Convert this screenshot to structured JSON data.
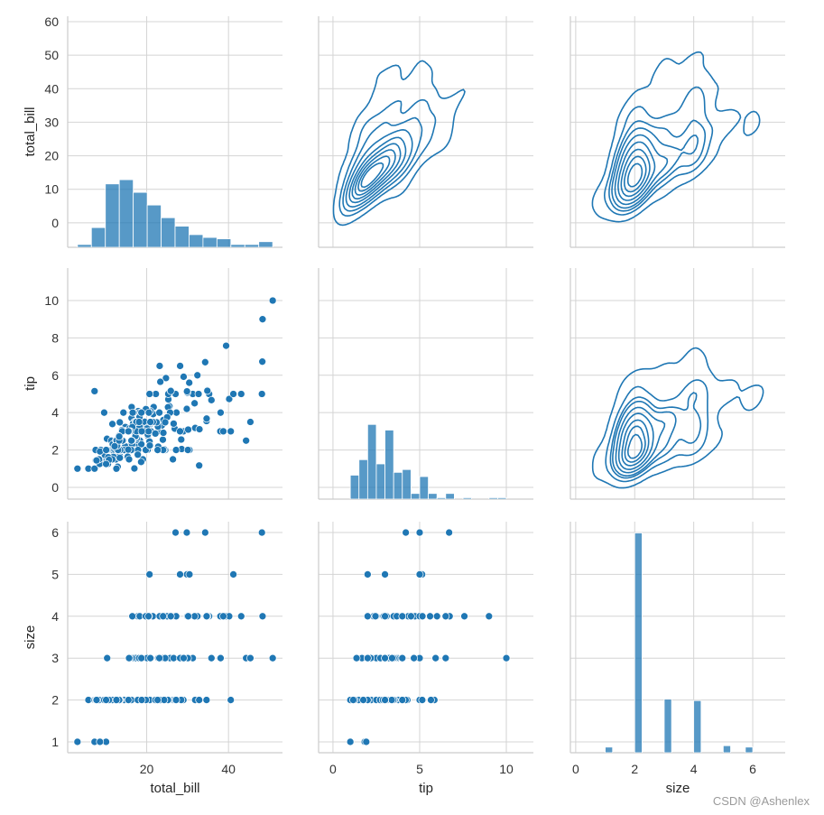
{
  "chart_data": {
    "type": "scatter",
    "kind": "pairplot",
    "lower": "scatter",
    "upper": "kde",
    "diag": "hist",
    "color": "#1f77b4",
    "grid": true,
    "variables": [
      "total_bill",
      "tip",
      "size"
    ],
    "column_axes": [
      {
        "label": "total_bill",
        "xlim": [
          0.68,
          53.2
        ],
        "xticks": [
          "20",
          "40"
        ]
      },
      {
        "label": "tip",
        "xlim": [
          -0.83,
          11.56
        ],
        "xticks": [
          "0",
          "5",
          "10"
        ]
      },
      {
        "label": "size",
        "xlim": [
          -0.18,
          7.1
        ],
        "xticks": [
          "0",
          "2",
          "4",
          "6"
        ]
      }
    ],
    "row_axes": [
      {
        "label": "total_bill",
        "ylim": [
          -7.3,
          61.6
        ],
        "yticks": [
          "0",
          "10",
          "20",
          "30",
          "40",
          "50",
          "60"
        ]
      },
      {
        "label": "tip",
        "ylim": [
          -0.63,
          11.74
        ],
        "yticks": [
          "0",
          "2",
          "4",
          "6",
          "8",
          "10"
        ]
      },
      {
        "label": "size",
        "ylim": [
          0.74,
          6.26
        ],
        "yticks": [
          "1",
          "2",
          "3",
          "4",
          "5",
          "6"
        ]
      }
    ],
    "diag_hist": [
      {
        "variable": "total_bill",
        "bins": 14,
        "range": [
          3.07,
          50.81
        ]
      },
      {
        "variable": "tip",
        "bins": 18,
        "range": [
          1,
          10
        ]
      },
      {
        "variable": "size",
        "bins": 20,
        "range": [
          1,
          6
        ]
      }
    ],
    "diag_count_ylim": [
      0,
      164
    ],
    "kde_levels": 10,
    "kde_thresh": 0.05,
    "columns": [
      "total_bill",
      "tip",
      "size"
    ],
    "points": [
      [
        16.99,
        1.01,
        2
      ],
      [
        10.34,
        1.66,
        3
      ],
      [
        21.01,
        3.5,
        3
      ],
      [
        23.68,
        3.31,
        2
      ],
      [
        24.59,
        3.61,
        4
      ],
      [
        25.29,
        4.71,
        4
      ],
      [
        8.77,
        2.0,
        2
      ],
      [
        26.88,
        3.12,
        4
      ],
      [
        15.04,
        1.96,
        2
      ],
      [
        14.78,
        3.23,
        2
      ],
      [
        10.27,
        1.71,
        2
      ],
      [
        35.26,
        5.0,
        4
      ],
      [
        15.42,
        1.57,
        2
      ],
      [
        18.43,
        3.0,
        4
      ],
      [
        14.83,
        3.02,
        2
      ],
      [
        21.58,
        3.92,
        2
      ],
      [
        10.33,
        1.67,
        3
      ],
      [
        16.29,
        3.71,
        3
      ],
      [
        16.97,
        3.5,
        3
      ],
      [
        20.65,
        3.35,
        3
      ],
      [
        17.92,
        4.08,
        2
      ],
      [
        20.29,
        2.75,
        2
      ],
      [
        15.77,
        2.23,
        2
      ],
      [
        39.42,
        7.58,
        4
      ],
      [
        19.82,
        3.18,
        2
      ],
      [
        17.81,
        2.34,
        4
      ],
      [
        13.37,
        2.0,
        2
      ],
      [
        12.69,
        2.0,
        2
      ],
      [
        21.7,
        4.3,
        2
      ],
      [
        19.65,
        3.0,
        2
      ],
      [
        9.55,
        1.45,
        2
      ],
      [
        18.35,
        2.5,
        4
      ],
      [
        15.06,
        3.0,
        2
      ],
      [
        20.69,
        2.45,
        4
      ],
      [
        17.78,
        3.27,
        2
      ],
      [
        24.06,
        3.6,
        3
      ],
      [
        16.31,
        2.0,
        3
      ],
      [
        16.93,
        3.07,
        3
      ],
      [
        18.69,
        2.31,
        3
      ],
      [
        31.27,
        5.0,
        3
      ],
      [
        16.04,
        2.24,
        3
      ],
      [
        17.46,
        2.54,
        2
      ],
      [
        13.94,
        3.06,
        2
      ],
      [
        9.68,
        1.32,
        2
      ],
      [
        30.4,
        5.6,
        4
      ],
      [
        18.29,
        3.0,
        2
      ],
      [
        22.23,
        5.0,
        2
      ],
      [
        32.4,
        6.0,
        4
      ],
      [
        28.55,
        2.05,
        3
      ],
      [
        18.04,
        3.0,
        2
      ],
      [
        12.54,
        2.5,
        2
      ],
      [
        10.29,
        2.6,
        2
      ],
      [
        34.81,
        5.2,
        4
      ],
      [
        9.94,
        1.56,
        2
      ],
      [
        25.56,
        4.34,
        4
      ],
      [
        19.49,
        3.51,
        2
      ],
      [
        38.01,
        3.0,
        4
      ],
      [
        26.41,
        1.5,
        2
      ],
      [
        11.24,
        1.76,
        2
      ],
      [
        48.27,
        6.73,
        4
      ],
      [
        20.29,
        3.21,
        2
      ],
      [
        13.81,
        2.0,
        2
      ],
      [
        11.02,
        1.98,
        2
      ],
      [
        18.29,
        3.76,
        4
      ],
      [
        17.59,
        2.64,
        3
      ],
      [
        20.08,
        3.15,
        3
      ],
      [
        16.45,
        2.47,
        2
      ],
      [
        3.07,
        1.0,
        1
      ],
      [
        20.23,
        2.01,
        2
      ],
      [
        15.01,
        2.09,
        2
      ],
      [
        12.02,
        1.97,
        2
      ],
      [
        17.07,
        3.0,
        3
      ],
      [
        26.86,
        3.14,
        2
      ],
      [
        25.28,
        5.0,
        2
      ],
      [
        14.73,
        2.2,
        2
      ],
      [
        10.51,
        1.25,
        2
      ],
      [
        17.92,
        3.08,
        2
      ],
      [
        27.2,
        4.0,
        4
      ],
      [
        22.76,
        3.0,
        2
      ],
      [
        17.29,
        2.71,
        2
      ],
      [
        19.44,
        3.0,
        2
      ],
      [
        16.66,
        3.4,
        2
      ],
      [
        10.07,
        1.83,
        1
      ],
      [
        32.68,
        5.0,
        2
      ],
      [
        15.98,
        2.03,
        2
      ],
      [
        34.83,
        5.17,
        4
      ],
      [
        13.03,
        2.0,
        2
      ],
      [
        18.28,
        4.0,
        2
      ],
      [
        24.71,
        5.85,
        2
      ],
      [
        21.16,
        3.0,
        2
      ],
      [
        28.97,
        3.0,
        2
      ],
      [
        22.49,
        3.5,
        2
      ],
      [
        5.75,
        1.0,
        2
      ],
      [
        16.32,
        4.3,
        2
      ],
      [
        22.75,
        3.25,
        2
      ],
      [
        40.17,
        4.73,
        4
      ],
      [
        27.28,
        4.0,
        2
      ],
      [
        12.03,
        1.5,
        2
      ],
      [
        21.01,
        3.0,
        2
      ],
      [
        12.46,
        1.5,
        2
      ],
      [
        11.35,
        2.5,
        2
      ],
      [
        15.38,
        3.0,
        2
      ],
      [
        44.3,
        2.5,
        3
      ],
      [
        22.42,
        3.48,
        2
      ],
      [
        20.92,
        4.08,
        2
      ],
      [
        15.36,
        1.64,
        2
      ],
      [
        20.49,
        4.06,
        2
      ],
      [
        25.21,
        4.29,
        2
      ],
      [
        18.24,
        3.76,
        2
      ],
      [
        14.31,
        4.0,
        2
      ],
      [
        14.0,
        3.0,
        2
      ],
      [
        7.25,
        1.0,
        1
      ],
      [
        38.07,
        4.0,
        3
      ],
      [
        23.95,
        2.55,
        2
      ],
      [
        25.71,
        4.0,
        3
      ],
      [
        17.31,
        3.5,
        2
      ],
      [
        29.93,
        5.07,
        4
      ],
      [
        10.65,
        1.5,
        2
      ],
      [
        12.43,
        1.8,
        2
      ],
      [
        24.08,
        2.92,
        4
      ],
      [
        11.69,
        2.31,
        2
      ],
      [
        13.42,
        1.68,
        2
      ],
      [
        14.26,
        2.5,
        2
      ],
      [
        15.95,
        2.0,
        2
      ],
      [
        12.48,
        2.52,
        2
      ],
      [
        29.8,
        4.2,
        6
      ],
      [
        8.52,
        1.48,
        2
      ],
      [
        14.52,
        2.0,
        2
      ],
      [
        11.38,
        2.0,
        2
      ],
      [
        22.82,
        2.18,
        3
      ],
      [
        19.08,
        1.5,
        2
      ],
      [
        20.27,
        2.83,
        2
      ],
      [
        11.17,
        1.5,
        2
      ],
      [
        12.26,
        2.0,
        2
      ],
      [
        18.26,
        3.25,
        2
      ],
      [
        8.51,
        1.25,
        2
      ],
      [
        10.33,
        2.0,
        2
      ],
      [
        14.15,
        2.0,
        2
      ],
      [
        16.0,
        2.0,
        2
      ],
      [
        13.16,
        2.75,
        2
      ],
      [
        17.47,
        3.5,
        2
      ],
      [
        34.3,
        6.7,
        6
      ],
      [
        41.19,
        5.0,
        5
      ],
      [
        27.05,
        5.0,
        6
      ],
      [
        16.43,
        2.3,
        2
      ],
      [
        8.35,
        1.5,
        2
      ],
      [
        18.64,
        1.36,
        3
      ],
      [
        11.87,
        1.63,
        2
      ],
      [
        9.78,
        1.73,
        2
      ],
      [
        7.51,
        2.0,
        2
      ],
      [
        14.07,
        2.5,
        2
      ],
      [
        13.13,
        2.0,
        2
      ],
      [
        17.26,
        2.74,
        3
      ],
      [
        24.55,
        2.0,
        4
      ],
      [
        19.77,
        2.0,
        4
      ],
      [
        29.85,
        5.14,
        5
      ],
      [
        48.17,
        5.0,
        6
      ],
      [
        25.0,
        3.75,
        4
      ],
      [
        13.39,
        2.61,
        2
      ],
      [
        16.49,
        2.0,
        4
      ],
      [
        21.5,
        3.5,
        4
      ],
      [
        12.66,
        2.5,
        2
      ],
      [
        16.21,
        2.0,
        3
      ],
      [
        13.81,
        2.0,
        2
      ],
      [
        17.51,
        3.0,
        2
      ],
      [
        24.52,
        3.48,
        3
      ],
      [
        20.76,
        2.24,
        2
      ],
      [
        31.71,
        4.5,
        4
      ],
      [
        10.59,
        1.61,
        2
      ],
      [
        10.63,
        2.0,
        2
      ],
      [
        50.81,
        10.0,
        3
      ],
      [
        15.81,
        3.16,
        2
      ],
      [
        7.25,
        5.15,
        2
      ],
      [
        31.85,
        3.18,
        2
      ],
      [
        16.82,
        4.0,
        2
      ],
      [
        32.9,
        3.11,
        2
      ],
      [
        17.89,
        2.0,
        2
      ],
      [
        14.48,
        2.0,
        2
      ],
      [
        9.6,
        4.0,
        2
      ],
      [
        34.63,
        3.55,
        2
      ],
      [
        34.65,
        3.68,
        4
      ],
      [
        23.33,
        5.65,
        2
      ],
      [
        45.35,
        3.5,
        3
      ],
      [
        23.17,
        6.5,
        4
      ],
      [
        40.55,
        3.0,
        2
      ],
      [
        20.69,
        5.0,
        5
      ],
      [
        20.9,
        3.5,
        3
      ],
      [
        30.46,
        2.0,
        5
      ],
      [
        18.15,
        3.5,
        3
      ],
      [
        23.1,
        4.0,
        3
      ],
      [
        15.69,
        1.5,
        2
      ],
      [
        19.81,
        4.19,
        2
      ],
      [
        28.44,
        2.56,
        2
      ],
      [
        15.48,
        2.02,
        2
      ],
      [
        16.58,
        4.0,
        2
      ],
      [
        7.56,
        1.44,
        2
      ],
      [
        10.34,
        2.0,
        2
      ],
      [
        43.11,
        5.0,
        4
      ],
      [
        13.0,
        2.0,
        2
      ],
      [
        13.51,
        2.0,
        2
      ],
      [
        18.71,
        4.0,
        3
      ],
      [
        12.74,
        2.01,
        2
      ],
      [
        13.0,
        2.0,
        2
      ],
      [
        16.4,
        2.5,
        2
      ],
      [
        20.53,
        4.0,
        4
      ],
      [
        16.47,
        3.23,
        3
      ],
      [
        26.59,
        3.41,
        3
      ],
      [
        38.73,
        3.0,
        4
      ],
      [
        24.27,
        2.03,
        2
      ],
      [
        12.76,
        2.23,
        2
      ],
      [
        30.06,
        2.0,
        3
      ],
      [
        25.89,
        5.16,
        4
      ],
      [
        48.33,
        9.0,
        4
      ],
      [
        13.27,
        2.5,
        2
      ],
      [
        28.17,
        6.5,
        3
      ],
      [
        12.9,
        1.1,
        2
      ],
      [
        28.15,
        3.0,
        5
      ],
      [
        11.59,
        1.5,
        2
      ],
      [
        7.74,
        1.44,
        2
      ],
      [
        30.14,
        3.09,
        4
      ],
      [
        12.16,
        2.2,
        2
      ],
      [
        13.42,
        3.48,
        2
      ],
      [
        8.58,
        1.92,
        1
      ],
      [
        15.98,
        3.0,
        3
      ],
      [
        13.42,
        1.58,
        2
      ],
      [
        16.27,
        2.5,
        2
      ],
      [
        10.09,
        2.0,
        2
      ],
      [
        20.45,
        3.0,
        4
      ],
      [
        13.28,
        2.72,
        2
      ],
      [
        22.12,
        2.88,
        2
      ],
      [
        24.01,
        2.0,
        4
      ],
      [
        15.69,
        3.0,
        3
      ],
      [
        11.61,
        3.39,
        2
      ],
      [
        10.77,
        1.47,
        2
      ],
      [
        15.53,
        3.0,
        2
      ],
      [
        10.07,
        1.25,
        2
      ],
      [
        12.6,
        1.0,
        2
      ],
      [
        32.83,
        1.17,
        2
      ],
      [
        35.83,
        4.67,
        3
      ],
      [
        29.03,
        5.92,
        3
      ],
      [
        27.18,
        2.0,
        2
      ],
      [
        22.67,
        2.0,
        2
      ],
      [
        17.82,
        1.75,
        2
      ],
      [
        18.78,
        3.0,
        2
      ]
    ]
  },
  "watermark": "CSDN @Ashenlex"
}
